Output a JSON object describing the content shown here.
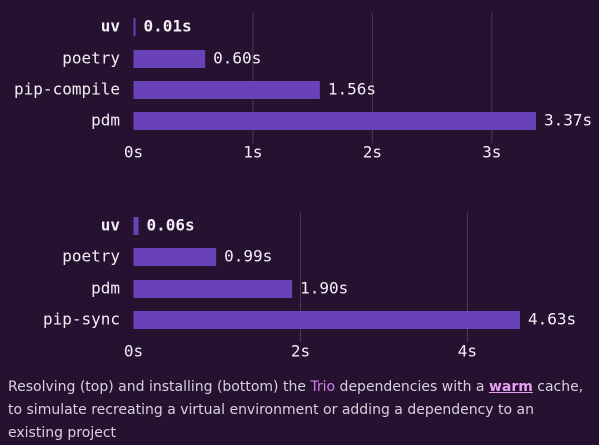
{
  "colors": {
    "background": "#261230",
    "bar": "#6a42b8",
    "grid": "#4a3a56",
    "label": "#f3eef5",
    "link": "#d17ff0",
    "caption": "#d9d0dd"
  },
  "chart_data": [
    {
      "type": "bar",
      "orientation": "horizontal",
      "categories": [
        "uv",
        "poetry",
        "pip-compile",
        "pdm"
      ],
      "values": [
        0.01,
        0.6,
        1.56,
        3.37
      ],
      "value_labels": [
        "0.01s",
        "0.60s",
        "1.56s",
        "3.37s"
      ],
      "highlight_index": 0,
      "xlim": [
        0,
        3.37
      ],
      "xticks": [
        0,
        1,
        2,
        3
      ],
      "xtick_labels": [
        "0s",
        "1s",
        "2s",
        "3s"
      ],
      "grid": true
    },
    {
      "type": "bar",
      "orientation": "horizontal",
      "categories": [
        "uv",
        "poetry",
        "pdm",
        "pip-sync"
      ],
      "values": [
        0.06,
        0.99,
        1.9,
        4.63
      ],
      "value_labels": [
        "0.06s",
        "0.99s",
        "1.90s",
        "4.63s"
      ],
      "highlight_index": 0,
      "xlim": [
        0,
        4.63
      ],
      "xticks": [
        0,
        2,
        4
      ],
      "xtick_labels": [
        "0s",
        "2s",
        "4s"
      ],
      "grid": true
    }
  ],
  "caption": {
    "part1": "Resolving (top) and installing (bottom) the ",
    "link1": "Trio",
    "part2": " dependencies with a ",
    "link2": "warm",
    "part3": " cache, to simulate recreating a virtual environment or adding a dependency to an existing project"
  }
}
